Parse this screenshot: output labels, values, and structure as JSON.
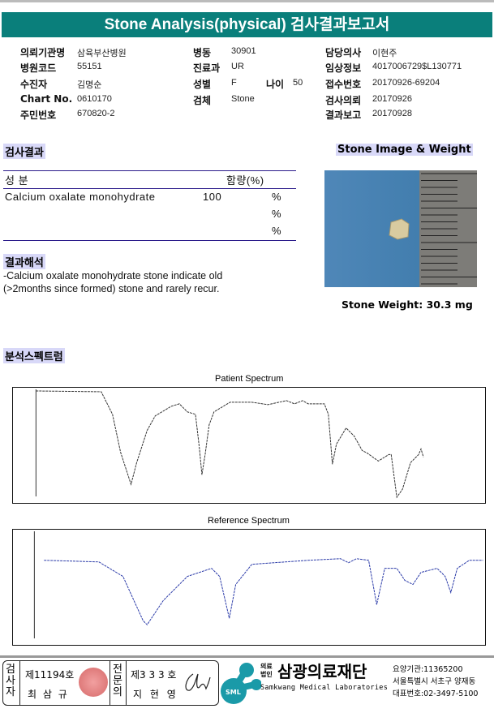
{
  "title": "Stone Analysis(physical) 검사결과보고서",
  "info": {
    "col1": [
      {
        "label": "의뢰기관명",
        "value": "삼육부산병원"
      },
      {
        "label": "병원코드",
        "value": "55151"
      },
      {
        "label": "수진자",
        "value": "김명순"
      },
      {
        "label": "Chart No.",
        "value": "0610170"
      },
      {
        "label": "주민번호",
        "value": "670820-2"
      }
    ],
    "col2": [
      {
        "label": "병동",
        "value": "30901"
      },
      {
        "label": "진료과",
        "value": "UR"
      },
      {
        "label": "성별",
        "value": "F"
      },
      {
        "label": "검체",
        "value": "Stone"
      }
    ],
    "age": {
      "label": "나이",
      "value": "50"
    },
    "col3": [
      {
        "label": "담당의사",
        "value": "이현주"
      },
      {
        "label": "임상정보",
        "value": "4017006729$L130771"
      },
      {
        "label": "접수번호",
        "value": "20170926-69204"
      },
      {
        "label": "검사의뢰",
        "value": "20170926"
      },
      {
        "label": "결과보고",
        "value": "20170928"
      }
    ]
  },
  "results": {
    "heading": "검사결과",
    "col_component": "성 분",
    "col_amount": "함량(%)",
    "rows": [
      {
        "component": "Calcium oxalate monohydrate",
        "amount": "100",
        "unit": "%"
      },
      {
        "component": "",
        "amount": "",
        "unit": "%"
      },
      {
        "component": "",
        "amount": "",
        "unit": "%"
      }
    ]
  },
  "interpretation": {
    "heading": "결과해석",
    "line1": " -Calcium oxalate monohydrate stone indicate old",
    "line2": "(>2months since formed) stone and rarely recur."
  },
  "stone": {
    "heading": "Stone Image & Weight",
    "weight_label": "Stone Weight:",
    "weight_value": "30.3",
    "weight_unit": "mg"
  },
  "spectrum": {
    "heading": "분석스펙트럼",
    "patient_title": "Patient Spectrum",
    "reference_title": "Reference Spectrum",
    "patient_color": "#333333",
    "reference_color": "#2a3aa8"
  },
  "footer": {
    "examiner_label": "검사자",
    "examiner_no": "제11194호",
    "examiner_name": "최 삼 규",
    "specialist_label": "전문의",
    "specialist_no": "제3 3 3 호",
    "specialist_name": "지 현 영",
    "org_prefix1": "의료",
    "org_prefix2": "법인",
    "org_name": "삼광의료재단",
    "org_english": "Samkwang Medical Laboratories",
    "logo_text": "SML",
    "code": "요양기관:11365200",
    "address": "서울특별시 서초구 양재동",
    "phone": "대표번호:02-3497-5100",
    "brand_color": "#1a9aa8"
  }
}
